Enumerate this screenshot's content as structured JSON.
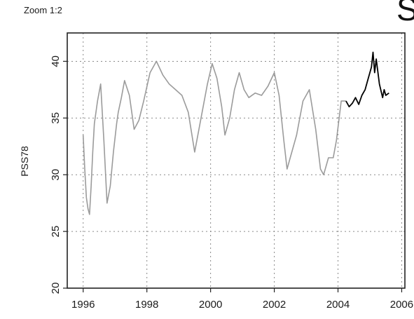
{
  "header": {
    "zoom_label": "Zoom 1:2",
    "corner_glyph": "S"
  },
  "chart_data": {
    "type": "line",
    "title": "",
    "xlabel": "",
    "ylabel": "PSS78",
    "xlim": [
      1995.5,
      2006.1
    ],
    "ylim": [
      20,
      42.5
    ],
    "x_ticks": [
      1996,
      1998,
      2000,
      2002,
      2004,
      2006
    ],
    "x_tick_labels": [
      "1996",
      "1998",
      "2000",
      "2002",
      "2004",
      "2006"
    ],
    "y_ticks": [
      20,
      25,
      30,
      35,
      40
    ],
    "y_tick_labels": [
      "20",
      "25",
      "30",
      "35",
      "40"
    ],
    "grid": true,
    "series": [
      {
        "color": "#9b9b9b",
        "x": [
          1996.0,
          1996.05,
          1996.1,
          1996.15,
          1996.2,
          1996.25,
          1996.3,
          1996.35,
          1996.45,
          1996.55,
          1996.65,
          1996.75,
          1996.85,
          1996.95,
          1997.05,
          1997.1,
          1997.2,
          1997.3,
          1997.45,
          1997.6,
          1997.75,
          1997.9,
          1998.1,
          1998.3,
          1998.5,
          1998.7,
          1998.9,
          1999.1,
          1999.3,
          1999.5,
          1999.7,
          1999.9,
          2000.05,
          2000.2,
          2000.35,
          2000.45,
          2000.6,
          2000.75,
          2000.9,
          2001.05,
          2001.2,
          2001.4,
          2001.6,
          2001.8,
          2002.0,
          2002.15,
          2002.3,
          2002.4,
          2002.5,
          2002.7,
          2002.9,
          2003.1,
          2003.3,
          2003.45,
          2003.55,
          2003.7,
          2003.85,
          2003.95,
          2004.1,
          2004.25
        ],
        "y": [
          33.5,
          30.5,
          28.0,
          27.0,
          26.5,
          29.0,
          32.0,
          34.5,
          36.5,
          38.0,
          33.0,
          27.5,
          29.0,
          32.0,
          34.5,
          35.5,
          36.8,
          38.3,
          37.0,
          34.0,
          34.8,
          36.5,
          39.0,
          40.0,
          38.8,
          38.0,
          37.5,
          37.0,
          35.5,
          32.0,
          35.0,
          38.0,
          39.8,
          38.5,
          36.0,
          33.5,
          35.0,
          37.5,
          39.0,
          37.5,
          36.8,
          37.2,
          37.0,
          37.8,
          39.0,
          37.0,
          33.0,
          30.5,
          31.5,
          33.5,
          36.5,
          37.5,
          34.0,
          30.5,
          30.0,
          31.5,
          31.5,
          33.0,
          36.5,
          36.5
        ]
      },
      {
        "color": "#000000",
        "x": [
          2004.25,
          2004.35,
          2004.45,
          2004.55,
          2004.65,
          2004.75,
          2004.85,
          2004.95,
          2005.05,
          2005.1,
          2005.15,
          2005.2,
          2005.3,
          2005.4,
          2005.45,
          2005.5,
          2005.6
        ],
        "y": [
          36.5,
          36.0,
          36.3,
          36.8,
          36.2,
          37.0,
          37.5,
          38.5,
          39.5,
          40.8,
          39.0,
          40.2,
          38.0,
          36.8,
          37.5,
          37.0,
          37.2
        ]
      }
    ]
  }
}
